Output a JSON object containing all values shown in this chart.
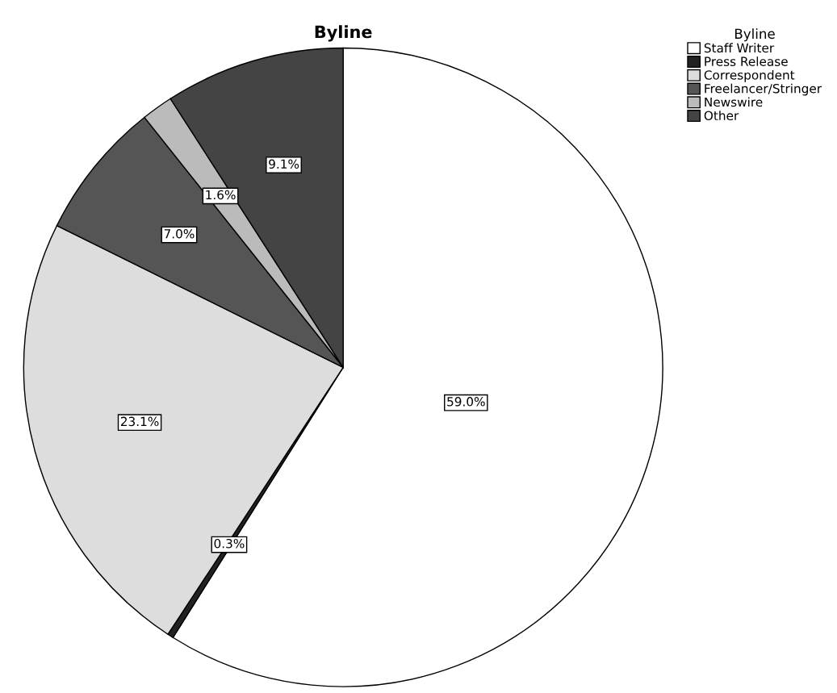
{
  "chart_data": {
    "type": "pie",
    "title": "Byline",
    "legend_title": "Byline",
    "legend": "top right",
    "categories": [
      "Staff Writer",
      "Press Release",
      "Correspondent",
      "Freelancer/Stringer",
      "Newswire",
      "Other"
    ],
    "values": [
      59.0,
      0.3,
      23.1,
      7.0,
      1.6,
      9.1
    ],
    "colors": [
      "#ffffff",
      "#222222",
      "#dddddd",
      "#555555",
      "#bbbbbb",
      "#444444"
    ],
    "value_labels": [
      "59.0%",
      "0.3%",
      "23.1%",
      "7.0%",
      "1.6%",
      "9.1%"
    ]
  }
}
